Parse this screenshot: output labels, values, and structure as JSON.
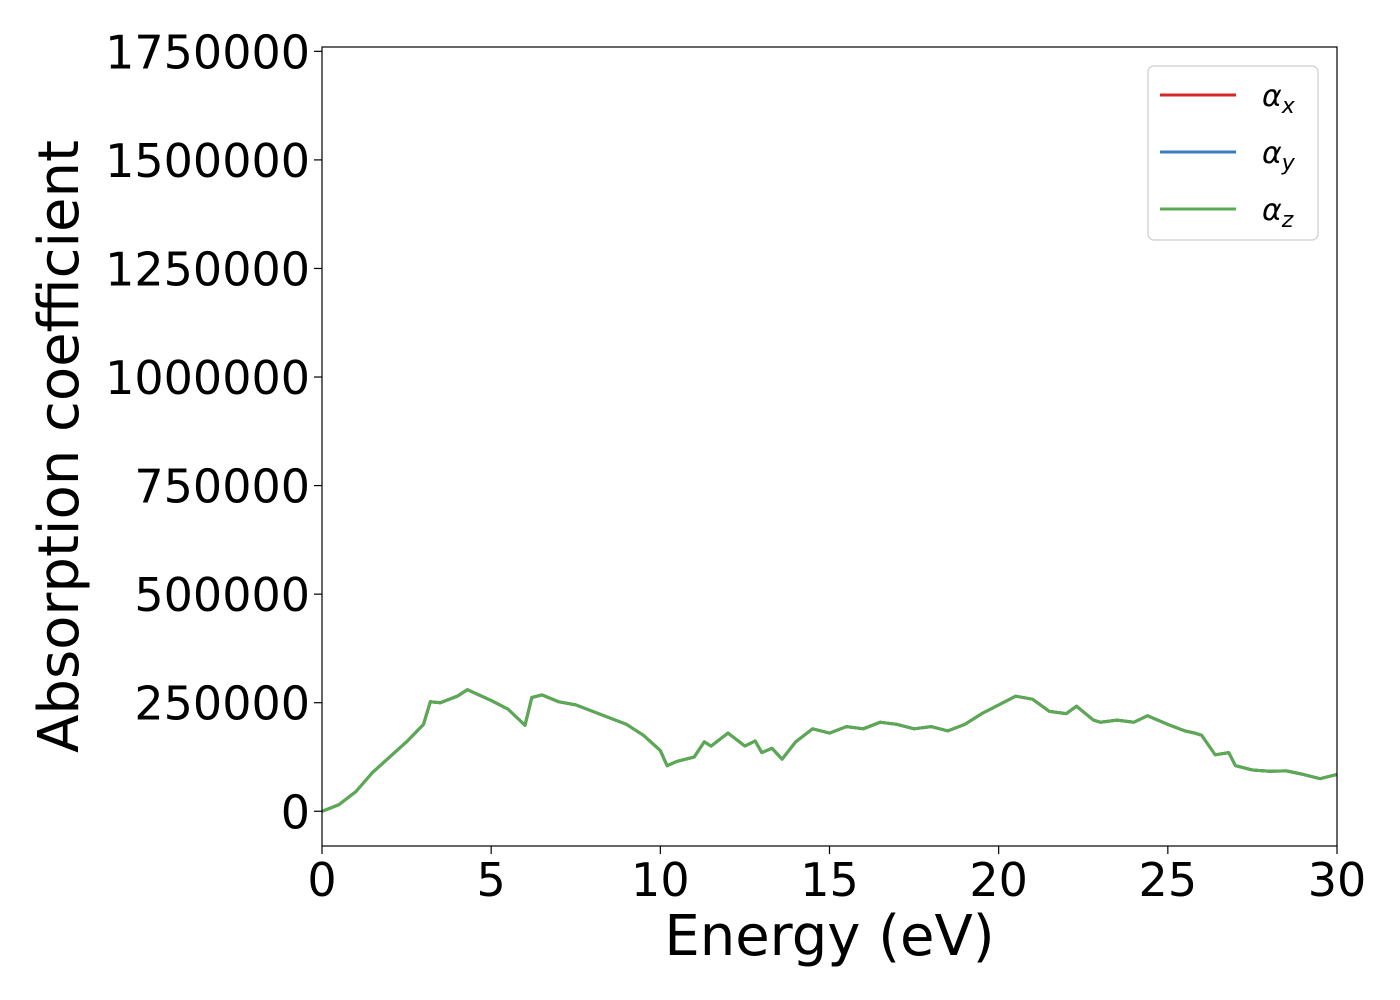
{
  "chart_data": {
    "type": "line",
    "title": "",
    "xlabel": "Energy (eV)",
    "ylabel": "Absorption coefficient",
    "xlim": [
      0,
      30
    ],
    "ylim": [
      -80000,
      1760000
    ],
    "x_ticks": [
      "0",
      "5",
      "10",
      "15",
      "20",
      "25",
      "30"
    ],
    "y_ticks": [
      "0",
      "250000",
      "500000",
      "750000",
      "1000000",
      "1250000",
      "1500000",
      "1750000"
    ],
    "grid": false,
    "legend_position": "top-right",
    "x": [
      0,
      0.5,
      1.0,
      1.5,
      2.0,
      2.5,
      3.0,
      3.2,
      3.5,
      4.0,
      4.3,
      5.0,
      5.5,
      6.0,
      6.2,
      6.5,
      7.0,
      7.5,
      8.0,
      8.5,
      9.0,
      9.5,
      10.0,
      10.2,
      10.5,
      11.0,
      11.3,
      11.5,
      12.0,
      12.5,
      12.8,
      13.0,
      13.3,
      13.6,
      14.0,
      14.5,
      15.0,
      15.5,
      16.0,
      16.5,
      17.0,
      17.5,
      18.0,
      18.5,
      19.0,
      19.5,
      20.0,
      20.5,
      21.0,
      21.5,
      22.0,
      22.3,
      22.8,
      23.0,
      23.5,
      24.0,
      24.4,
      25.0,
      25.5,
      25.8,
      26.0,
      26.4,
      26.8,
      27.0,
      27.5,
      28.0,
      28.5,
      29.0,
      29.5,
      30.0
    ],
    "series": [
      {
        "name": "α_x",
        "label_main": "α",
        "label_sub": "x",
        "color": "#d62728",
        "values": [
          0,
          15000,
          45000,
          90000,
          125000,
          160000,
          200000,
          252000,
          250000,
          265000,
          280000,
          255000,
          235000,
          198000,
          262000,
          268000,
          252000,
          245000,
          230000,
          215000,
          200000,
          175000,
          140000,
          105000,
          115000,
          125000,
          160000,
          150000,
          180000,
          150000,
          162000,
          135000,
          145000,
          120000,
          160000,
          190000,
          180000,
          195000,
          190000,
          205000,
          200000,
          190000,
          195000,
          185000,
          200000,
          225000,
          245000,
          265000,
          258000,
          230000,
          225000,
          242000,
          210000,
          205000,
          210000,
          205000,
          220000,
          200000,
          185000,
          180000,
          175000,
          130000,
          135000,
          105000,
          95000,
          92000,
          93000,
          85000,
          75000,
          85000
        ]
      },
      {
        "name": "α_y",
        "label_main": "α",
        "label_sub": "y",
        "color": "#3a7bbf",
        "values": [
          0,
          15000,
          45000,
          90000,
          125000,
          160000,
          200000,
          252000,
          250000,
          265000,
          280000,
          255000,
          235000,
          198000,
          262000,
          268000,
          252000,
          245000,
          230000,
          215000,
          200000,
          175000,
          140000,
          105000,
          115000,
          125000,
          160000,
          150000,
          180000,
          150000,
          162000,
          135000,
          145000,
          120000,
          160000,
          190000,
          180000,
          195000,
          190000,
          205000,
          200000,
          190000,
          195000,
          185000,
          200000,
          225000,
          245000,
          265000,
          258000,
          230000,
          225000,
          242000,
          210000,
          205000,
          210000,
          205000,
          220000,
          200000,
          185000,
          180000,
          175000,
          130000,
          135000,
          105000,
          95000,
          92000,
          93000,
          85000,
          75000,
          85000
        ]
      },
      {
        "name": "α_z",
        "label_main": "α",
        "label_sub": "z",
        "color": "#5aaa52",
        "values": [
          0,
          15000,
          45000,
          90000,
          125000,
          160000,
          200000,
          252000,
          250000,
          265000,
          280000,
          255000,
          235000,
          198000,
          262000,
          268000,
          252000,
          245000,
          230000,
          215000,
          200000,
          175000,
          140000,
          105000,
          115000,
          125000,
          160000,
          150000,
          180000,
          150000,
          162000,
          135000,
          145000,
          120000,
          160000,
          190000,
          180000,
          195000,
          190000,
          205000,
          200000,
          190000,
          195000,
          185000,
          200000,
          225000,
          245000,
          265000,
          258000,
          230000,
          225000,
          242000,
          210000,
          205000,
          210000,
          205000,
          220000,
          200000,
          185000,
          180000,
          175000,
          130000,
          135000,
          105000,
          95000,
          92000,
          93000,
          85000,
          75000,
          85000
        ]
      }
    ]
  }
}
